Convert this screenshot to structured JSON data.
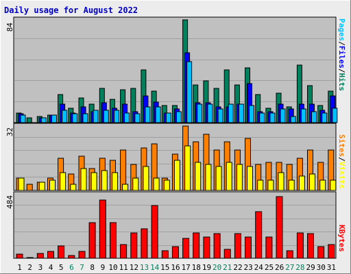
{
  "title": "Daily usage for August 2022",
  "colors": {
    "background": "#ececec",
    "plot": "#c0c0c0",
    "title": "#0000c0",
    "hits": "#00805c",
    "files": "#0000ff",
    "pages": "#00c0ff",
    "visits": "#ffff00",
    "sites": "#ff8000",
    "kbytes": "#ff0000",
    "weekday": "#000000",
    "weekend": "#00805c"
  },
  "chart_data": [
    {
      "type": "bar",
      "panel": "top",
      "ymax_label": "84",
      "ylim": [
        0,
        84
      ],
      "legend": [
        {
          "text": "Pages",
          "color": "#00c0ff"
        },
        {
          "text": "/",
          "color": "#000000"
        },
        {
          "text": "Files",
          "color": "#0000ff"
        },
        {
          "text": "/",
          "color": "#000000"
        },
        {
          "text": "Hits",
          "color": "#00805c"
        }
      ],
      "categories": [
        "1",
        "2",
        "3",
        "4",
        "5",
        "6",
        "7",
        "8",
        "9",
        "10",
        "11",
        "12",
        "13",
        "14",
        "15",
        "16",
        "17",
        "18",
        "19",
        "20",
        "21",
        "22",
        "23",
        "24",
        "25",
        "26",
        "27",
        "28",
        "29",
        "30",
        "31"
      ],
      "series": [
        {
          "name": "Hits",
          "values": [
            8,
            4,
            5,
            6,
            23,
            12,
            20,
            15,
            28,
            19,
            27,
            28,
            43,
            26,
            14,
            14,
            84,
            31,
            34,
            28,
            43,
            31,
            45,
            23,
            12,
            24,
            13,
            47,
            30,
            14,
            26
          ]
        },
        {
          "name": "Files",
          "values": [
            7,
            0,
            4,
            6,
            15,
            8,
            13,
            9,
            16,
            12,
            15,
            9,
            22,
            17,
            8,
            11,
            57,
            16,
            16,
            13,
            13,
            15,
            32,
            9,
            9,
            15,
            11,
            15,
            15,
            10,
            22
          ]
        },
        {
          "name": "Pages",
          "values": [
            6,
            0,
            4,
            6,
            10,
            7,
            7,
            10,
            10,
            10,
            8,
            7,
            13,
            13,
            8,
            9,
            50,
            15,
            15,
            11,
            15,
            15,
            14,
            8,
            8,
            11,
            5,
            11,
            9,
            8,
            12
          ]
        }
      ]
    },
    {
      "type": "bar",
      "panel": "middle",
      "ymax_label": "32",
      "ylim": [
        0,
        32
      ],
      "legend": [
        {
          "text": "Sites",
          "color": "#ff8000"
        },
        {
          "text": "/",
          "color": "#000000"
        },
        {
          "text": "Visits",
          "color": "#ffff00"
        }
      ],
      "categories": [
        "1",
        "2",
        "3",
        "4",
        "5",
        "6",
        "7",
        "8",
        "9",
        "10",
        "11",
        "12",
        "13",
        "14",
        "15",
        "16",
        "17",
        "18",
        "19",
        "20",
        "21",
        "22",
        "23",
        "24",
        "25",
        "26",
        "27",
        "28",
        "29",
        "30",
        "31"
      ],
      "series": [
        {
          "name": "Sites",
          "values": [
            6,
            3,
            4,
            6,
            16,
            8,
            17,
            11,
            16,
            15,
            20,
            13,
            21,
            23,
            6,
            18,
            32,
            24,
            28,
            20,
            24,
            20,
            26,
            13,
            14,
            14,
            13,
            16,
            20,
            14,
            20
          ]
        },
        {
          "name": "Visits",
          "values": [
            6,
            0,
            4,
            5,
            9,
            3,
            11,
            9,
            10,
            9,
            3,
            6,
            12,
            6,
            5,
            15,
            22,
            14,
            13,
            12,
            14,
            13,
            12,
            5,
            5,
            9,
            5,
            7,
            8,
            5,
            5
          ]
        }
      ]
    },
    {
      "type": "bar",
      "panel": "bottom",
      "ymax_label": "484",
      "ylim": [
        0,
        484
      ],
      "legend": [
        {
          "text": "KBytes",
          "color": "#ff0000"
        }
      ],
      "categories": [
        "1",
        "2",
        "3",
        "4",
        "5",
        "6",
        "7",
        "8",
        "9",
        "10",
        "11",
        "12",
        "13",
        "14",
        "15",
        "16",
        "17",
        "18",
        "19",
        "20",
        "21",
        "22",
        "23",
        "24",
        "25",
        "26",
        "27",
        "28",
        "29",
        "30",
        "31"
      ],
      "series": [
        {
          "name": "KBytes",
          "values": [
            30,
            5,
            35,
            50,
            95,
            20,
            50,
            270,
            440,
            270,
            105,
            190,
            225,
            400,
            55,
            90,
            150,
            190,
            160,
            185,
            70,
            185,
            160,
            355,
            160,
            470,
            55,
            190,
            185,
            90,
            105
          ]
        }
      ]
    }
  ],
  "days": [
    {
      "label": "1",
      "weekend": false
    },
    {
      "label": "2",
      "weekend": false
    },
    {
      "label": "3",
      "weekend": false
    },
    {
      "label": "4",
      "weekend": false
    },
    {
      "label": "5",
      "weekend": false
    },
    {
      "label": "6",
      "weekend": true
    },
    {
      "label": "7",
      "weekend": true
    },
    {
      "label": "8",
      "weekend": false
    },
    {
      "label": "9",
      "weekend": false
    },
    {
      "label": "10",
      "weekend": false
    },
    {
      "label": "11",
      "weekend": false
    },
    {
      "label": "12",
      "weekend": false
    },
    {
      "label": "13",
      "weekend": true
    },
    {
      "label": "14",
      "weekend": true
    },
    {
      "label": "15",
      "weekend": false
    },
    {
      "label": "16",
      "weekend": false
    },
    {
      "label": "17",
      "weekend": false
    },
    {
      "label": "18",
      "weekend": false
    },
    {
      "label": "19",
      "weekend": false
    },
    {
      "label": "20",
      "weekend": true
    },
    {
      "label": "21",
      "weekend": true
    },
    {
      "label": "22",
      "weekend": false
    },
    {
      "label": "23",
      "weekend": false
    },
    {
      "label": "24",
      "weekend": false
    },
    {
      "label": "25",
      "weekend": false
    },
    {
      "label": "26",
      "weekend": false
    },
    {
      "label": "27",
      "weekend": true
    },
    {
      "label": "28",
      "weekend": true
    },
    {
      "label": "29",
      "weekend": false
    },
    {
      "label": "30",
      "weekend": false
    },
    {
      "label": "31",
      "weekend": false
    }
  ]
}
